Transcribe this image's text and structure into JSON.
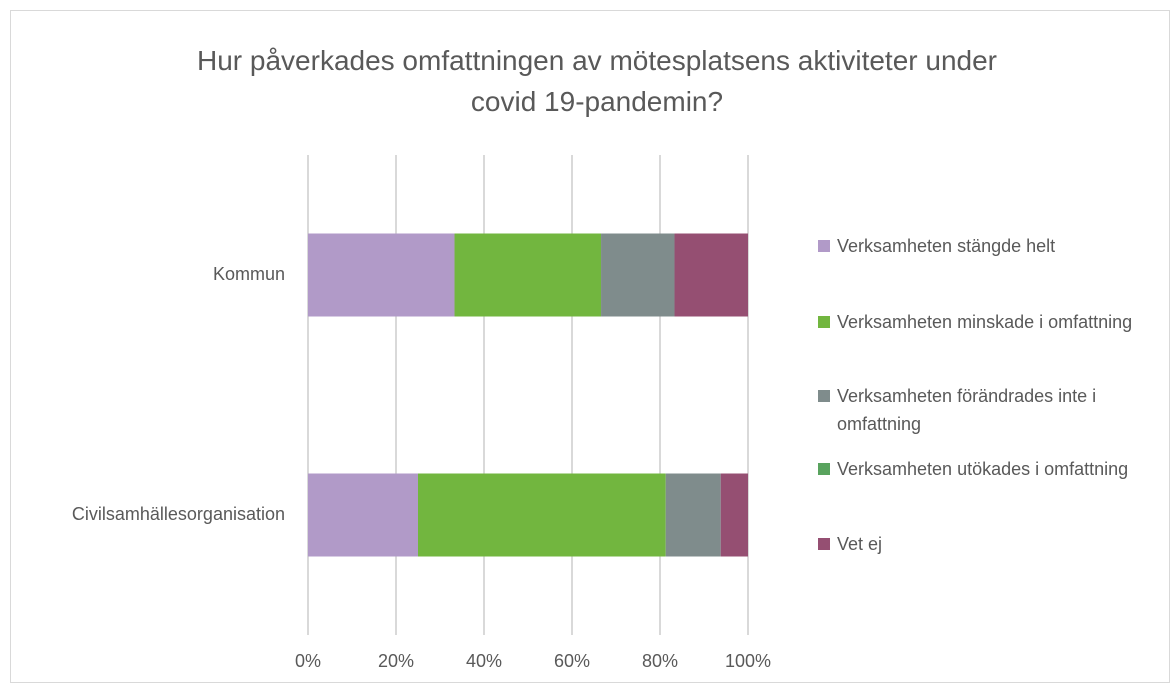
{
  "chart_data": {
    "type": "stacked_barh",
    "title": "Hur påverkades omfattningen av mötesplatsens aktiviteter under covid 19-pandemin?",
    "categories": [
      "Kommun",
      "Civilsamhällesorganisation"
    ],
    "series": [
      {
        "name": "Verksamheten stängde helt",
        "color": "#b19ac8",
        "values": [
          33.3,
          25
        ]
      },
      {
        "name": "Verksamheten minskade i omfattning",
        "color": "#72b63f",
        "values": [
          33.3,
          56.3
        ]
      },
      {
        "name": "Verksamheten förändrades inte i omfattning",
        "color": "#7f8c8c",
        "values": [
          16.7,
          12.5
        ]
      },
      {
        "name": "Verksamheten utökades i omfattning",
        "color": "#59a35e",
        "values": [
          0,
          0
        ]
      },
      {
        "name": "Vet ej",
        "color": "#954f72",
        "values": [
          16.7,
          6.2
        ]
      }
    ],
    "xlim": [
      0,
      100
    ],
    "xticks": [
      {
        "value": 0,
        "label": "0%"
      },
      {
        "value": 20,
        "label": "20%"
      },
      {
        "value": 40,
        "label": "40%"
      },
      {
        "value": 60,
        "label": "60%"
      },
      {
        "value": 80,
        "label": "80%"
      },
      {
        "value": 100,
        "label": "100%"
      }
    ],
    "grid": true,
    "legend": "right"
  }
}
